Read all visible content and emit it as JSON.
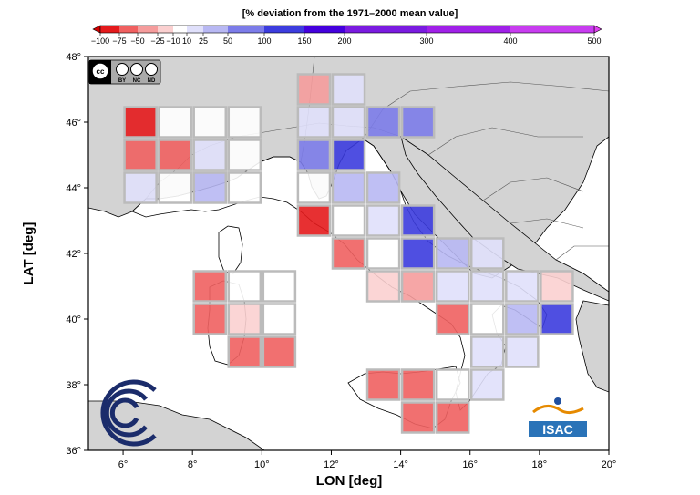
{
  "colorbar": {
    "title": "[% deviation from the 1971–2000 mean value]",
    "ticks": [
      {
        "label": "−100",
        "value": -100
      },
      {
        "label": "−75",
        "value": -75
      },
      {
        "label": "−50",
        "value": -50
      },
      {
        "label": "−25",
        "value": -25
      },
      {
        "label": "−10",
        "value": -10
      },
      {
        "label": "10",
        "value": 10
      },
      {
        "label": "25",
        "value": 25
      },
      {
        "label": "50",
        "value": 50
      },
      {
        "label": "100",
        "value": 100
      },
      {
        "label": "150",
        "value": 150
      },
      {
        "label": "200",
        "value": 200
      },
      {
        "label": "300",
        "value": 300
      },
      {
        "label": "400",
        "value": 400
      },
      {
        "label": "500",
        "value": 500
      }
    ],
    "colors": [
      "#e41a1c",
      "#f06060",
      "#f59c9c",
      "#fbd0d0",
      "#ffffff",
      "#e0e0fb",
      "#b8b8f3",
      "#7c7ce9",
      "#3c3cde",
      "#4400dd",
      "#7a1be0",
      "#a020e8",
      "#c83cf0"
    ]
  },
  "axes": {
    "xlabel": "LON [deg]",
    "ylabel": "LAT [deg]",
    "xrange": [
      5,
      20
    ],
    "yrange": [
      36,
      48
    ],
    "xticks": [
      {
        "label": "6°",
        "value": 6
      },
      {
        "label": "8°",
        "value": 8
      },
      {
        "label": "10°",
        "value": 10
      },
      {
        "label": "12°",
        "value": 12
      },
      {
        "label": "14°",
        "value": 14
      },
      {
        "label": "16°",
        "value": 16
      },
      {
        "label": "18°",
        "value": 18
      },
      {
        "label": "20°",
        "value": 20
      }
    ],
    "yticks": [
      {
        "label": "36°",
        "value": 36
      },
      {
        "label": "38°",
        "value": 38
      },
      {
        "label": "40°",
        "value": 40
      },
      {
        "label": "42°",
        "value": 42
      },
      {
        "label": "44°",
        "value": 44
      },
      {
        "label": "46°",
        "value": 46
      },
      {
        "label": "48°",
        "value": 48
      }
    ]
  },
  "cells": [
    {
      "lon": 11.5,
      "lat": 47.0,
      "color": "#f59c9c"
    },
    {
      "lon": 12.5,
      "lat": 47.0,
      "color": "#e0e0fb"
    },
    {
      "lon": 6.5,
      "lat": 46.0,
      "color": "#e41a1c"
    },
    {
      "lon": 7.5,
      "lat": 46.0,
      "color": "#ffffff"
    },
    {
      "lon": 8.5,
      "lat": 46.0,
      "color": "#ffffff"
    },
    {
      "lon": 9.5,
      "lat": 46.0,
      "color": "#ffffff"
    },
    {
      "lon": 11.5,
      "lat": 46.0,
      "color": "#e0e0fb"
    },
    {
      "lon": 12.5,
      "lat": 46.0,
      "color": "#e0e0fb"
    },
    {
      "lon": 13.5,
      "lat": 46.0,
      "color": "#7c7ce9"
    },
    {
      "lon": 14.5,
      "lat": 46.0,
      "color": "#7c7ce9"
    },
    {
      "lon": 6.5,
      "lat": 45.0,
      "color": "#f06060"
    },
    {
      "lon": 7.5,
      "lat": 45.0,
      "color": "#f06060"
    },
    {
      "lon": 8.5,
      "lat": 45.0,
      "color": "#e0e0fb"
    },
    {
      "lon": 9.5,
      "lat": 45.0,
      "color": "#ffffff"
    },
    {
      "lon": 11.5,
      "lat": 45.0,
      "color": "#7c7ce9"
    },
    {
      "lon": 12.5,
      "lat": 45.0,
      "color": "#3c3cde"
    },
    {
      "lon": 6.5,
      "lat": 44.0,
      "color": "#e0e0fb"
    },
    {
      "lon": 7.5,
      "lat": 44.0,
      "color": "#ffffff"
    },
    {
      "lon": 8.5,
      "lat": 44.0,
      "color": "#b8b8f3"
    },
    {
      "lon": 9.5,
      "lat": 44.0,
      "color": "#ffffff"
    },
    {
      "lon": 11.5,
      "lat": 44.0,
      "color": "#ffffff"
    },
    {
      "lon": 12.5,
      "lat": 44.0,
      "color": "#b8b8f3"
    },
    {
      "lon": 13.5,
      "lat": 44.0,
      "color": "#b8b8f3"
    },
    {
      "lon": 11.5,
      "lat": 43.0,
      "color": "#e41a1c"
    },
    {
      "lon": 12.5,
      "lat": 43.0,
      "color": "#ffffff"
    },
    {
      "lon": 13.5,
      "lat": 43.0,
      "color": "#e0e0fb"
    },
    {
      "lon": 14.5,
      "lat": 43.0,
      "color": "#3c3cde"
    },
    {
      "lon": 12.5,
      "lat": 42.0,
      "color": "#f06060"
    },
    {
      "lon": 13.5,
      "lat": 42.0,
      "color": "#ffffff"
    },
    {
      "lon": 14.5,
      "lat": 42.0,
      "color": "#3c3cde"
    },
    {
      "lon": 15.5,
      "lat": 42.0,
      "color": "#b8b8f3"
    },
    {
      "lon": 16.5,
      "lat": 42.0,
      "color": "#e0e0fb"
    },
    {
      "lon": 8.5,
      "lat": 41.0,
      "color": "#f06060"
    },
    {
      "lon": 9.5,
      "lat": 41.0,
      "color": "#ffffff"
    },
    {
      "lon": 10.5,
      "lat": 41.0,
      "color": "#ffffff"
    },
    {
      "lon": 13.5,
      "lat": 41.0,
      "color": "#fbd0d0"
    },
    {
      "lon": 14.5,
      "lat": 41.0,
      "color": "#f59c9c"
    },
    {
      "lon": 15.5,
      "lat": 41.0,
      "color": "#e0e0fb"
    },
    {
      "lon": 16.5,
      "lat": 41.0,
      "color": "#e0e0fb"
    },
    {
      "lon": 17.5,
      "lat": 41.0,
      "color": "#e0e0fb"
    },
    {
      "lon": 18.5,
      "lat": 41.0,
      "color": "#fbd0d0"
    },
    {
      "lon": 8.5,
      "lat": 40.0,
      "color": "#f06060"
    },
    {
      "lon": 9.5,
      "lat": 40.0,
      "color": "#fbd0d0"
    },
    {
      "lon": 10.5,
      "lat": 40.0,
      "color": "#ffffff"
    },
    {
      "lon": 15.5,
      "lat": 40.0,
      "color": "#f06060"
    },
    {
      "lon": 16.5,
      "lat": 40.0,
      "color": "#ffffff"
    },
    {
      "lon": 17.5,
      "lat": 40.0,
      "color": "#b8b8f3"
    },
    {
      "lon": 18.5,
      "lat": 40.0,
      "color": "#3c3cde"
    },
    {
      "lon": 9.5,
      "lat": 39.0,
      "color": "#f06060"
    },
    {
      "lon": 10.5,
      "lat": 39.0,
      "color": "#f06060"
    },
    {
      "lon": 16.5,
      "lat": 39.0,
      "color": "#e0e0fb"
    },
    {
      "lon": 17.5,
      "lat": 39.0,
      "color": "#e0e0fb"
    },
    {
      "lon": 13.5,
      "lat": 38.0,
      "color": "#f06060"
    },
    {
      "lon": 14.5,
      "lat": 38.0,
      "color": "#f06060"
    },
    {
      "lon": 15.5,
      "lat": 38.0,
      "color": "#ffffff"
    },
    {
      "lon": 16.5,
      "lat": 38.0,
      "color": "#e0e0fb"
    },
    {
      "lon": 14.5,
      "lat": 37.0,
      "color": "#f06060"
    },
    {
      "lon": 15.5,
      "lat": 37.0,
      "color": "#f06060"
    }
  ],
  "logos": {
    "license_badge": [
      "BY",
      "NC",
      "ND"
    ],
    "isac_text": "ISAC"
  }
}
